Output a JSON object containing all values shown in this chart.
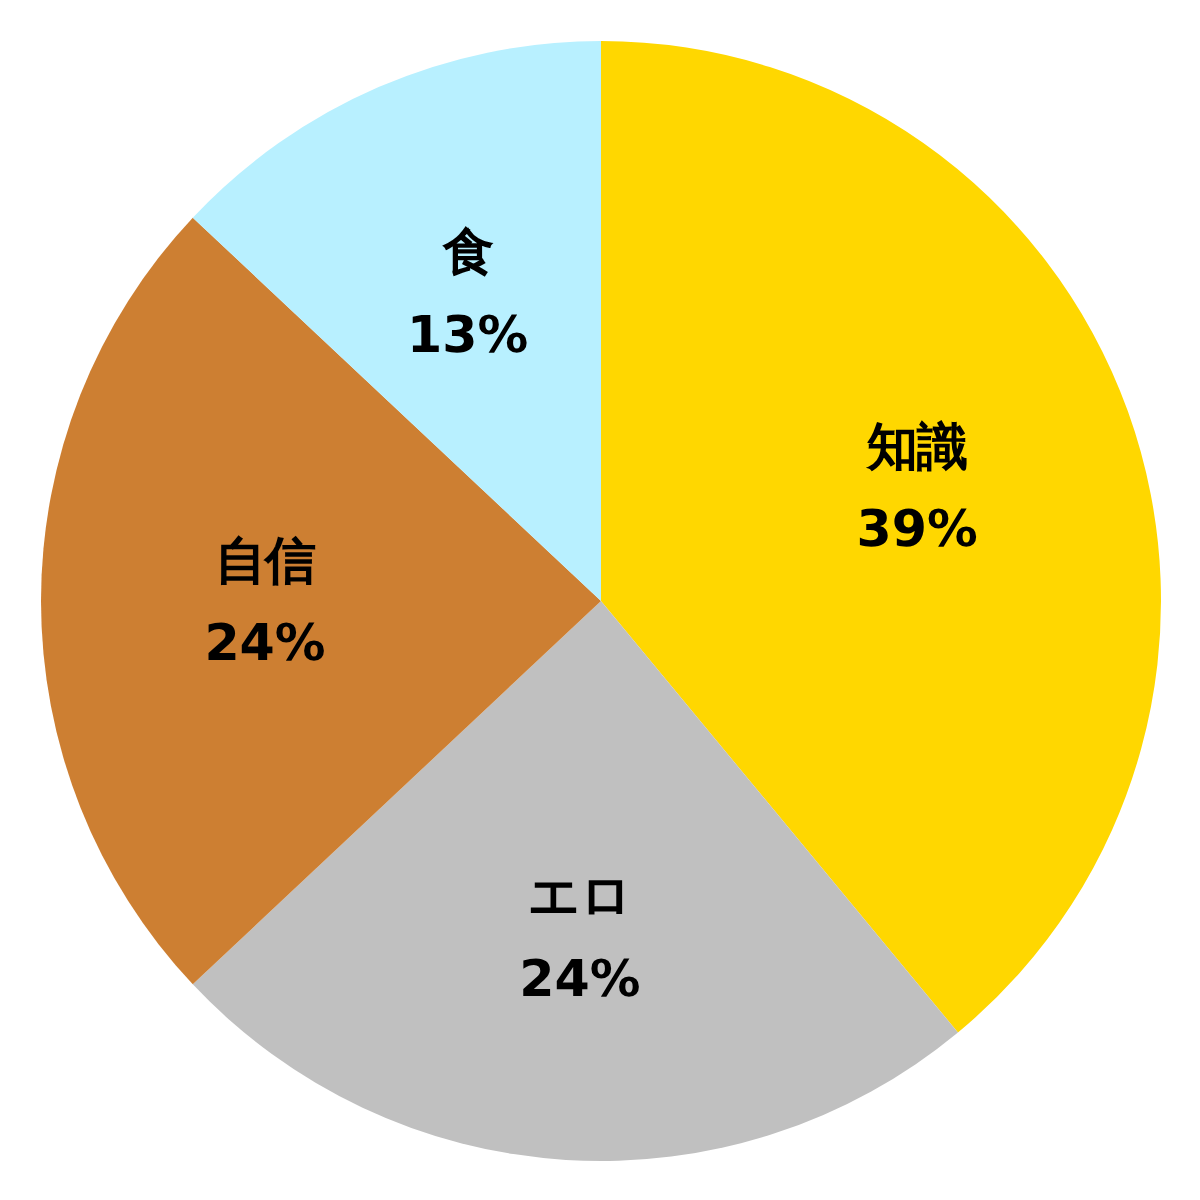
{
  "chart_data": {
    "type": "pie",
    "categories": [
      "知識",
      "エロ",
      "自信",
      "食"
    ],
    "values": [
      39,
      24,
      24,
      13
    ],
    "value_labels": [
      "39%",
      "24%",
      "24%",
      "13%"
    ],
    "colors": [
      "#ffd700",
      "#c0c0c0",
      "#cd7f32",
      "#b8f0ff"
    ]
  }
}
